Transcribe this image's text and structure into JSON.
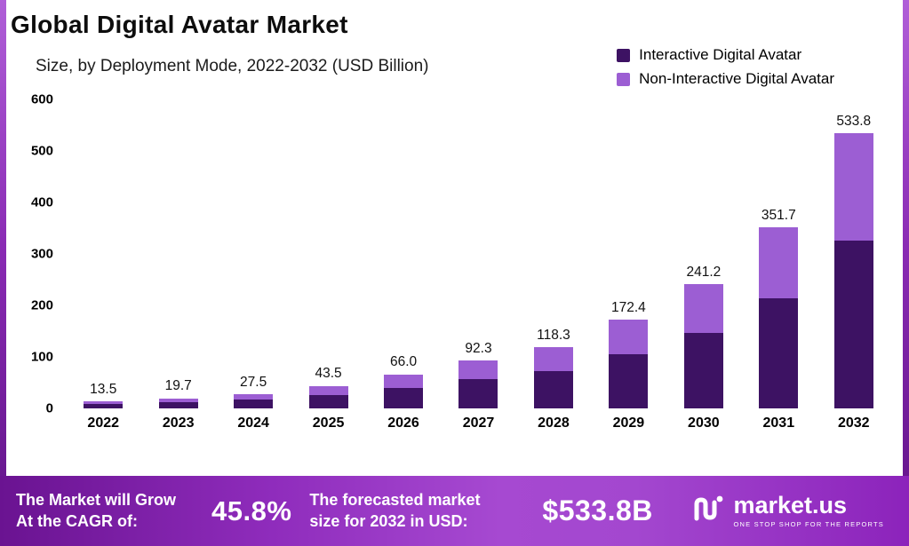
{
  "header": {
    "title": "Global Digital Avatar Market",
    "subtitle": "Size, by Deployment Mode, 2022-2032 (USD Billion)"
  },
  "legend": [
    {
      "label": "Interactive Digital Avatar",
      "color": "#3d1263"
    },
    {
      "label": "Non-Interactive Digital Avatar",
      "color": "#9c5ed3"
    }
  ],
  "chart_data": {
    "type": "bar",
    "stacked": true,
    "title": "Global Digital Avatar Market",
    "subtitle": "Size, by Deployment Mode, 2022-2032 (USD Billion)",
    "xlabel": "",
    "ylabel": "",
    "ylim": [
      0,
      600
    ],
    "yticks": [
      0,
      100,
      200,
      300,
      400,
      500,
      600
    ],
    "grid": false,
    "legend_position": "top-right",
    "categories": [
      "2022",
      "2023",
      "2024",
      "2025",
      "2026",
      "2027",
      "2028",
      "2029",
      "2030",
      "2031",
      "2032"
    ],
    "totals_display": [
      "13.5",
      "19.7",
      "27.5",
      "43.5",
      "66.0",
      "92.3",
      "118.3",
      "172.4",
      "241.2",
      "351.7",
      "533.8"
    ],
    "series": [
      {
        "name": "Interactive Digital Avatar",
        "color": "#3d1263",
        "values": [
          8.2,
          12.0,
          16.8,
          26.5,
          40.3,
          56.3,
          72.2,
          105.2,
          147.1,
          214.5,
          325.6
        ]
      },
      {
        "name": "Non-Interactive Digital Avatar",
        "color": "#9c5ed3",
        "values": [
          5.3,
          7.7,
          10.7,
          17.0,
          25.7,
          36.0,
          46.1,
          67.2,
          94.1,
          137.2,
          208.2
        ]
      }
    ]
  },
  "footer": {
    "cagr_label_line1": "The Market will Grow",
    "cagr_label_line2": "At the CAGR of:",
    "cagr_value": "45.8%",
    "forecast_label_line1": "The forecasted market",
    "forecast_label_line2": "size for 2032 in USD:",
    "forecast_value": "$533.8B",
    "brand": "market.us",
    "brand_tagline": "ONE STOP SHOP FOR THE REPORTS"
  }
}
